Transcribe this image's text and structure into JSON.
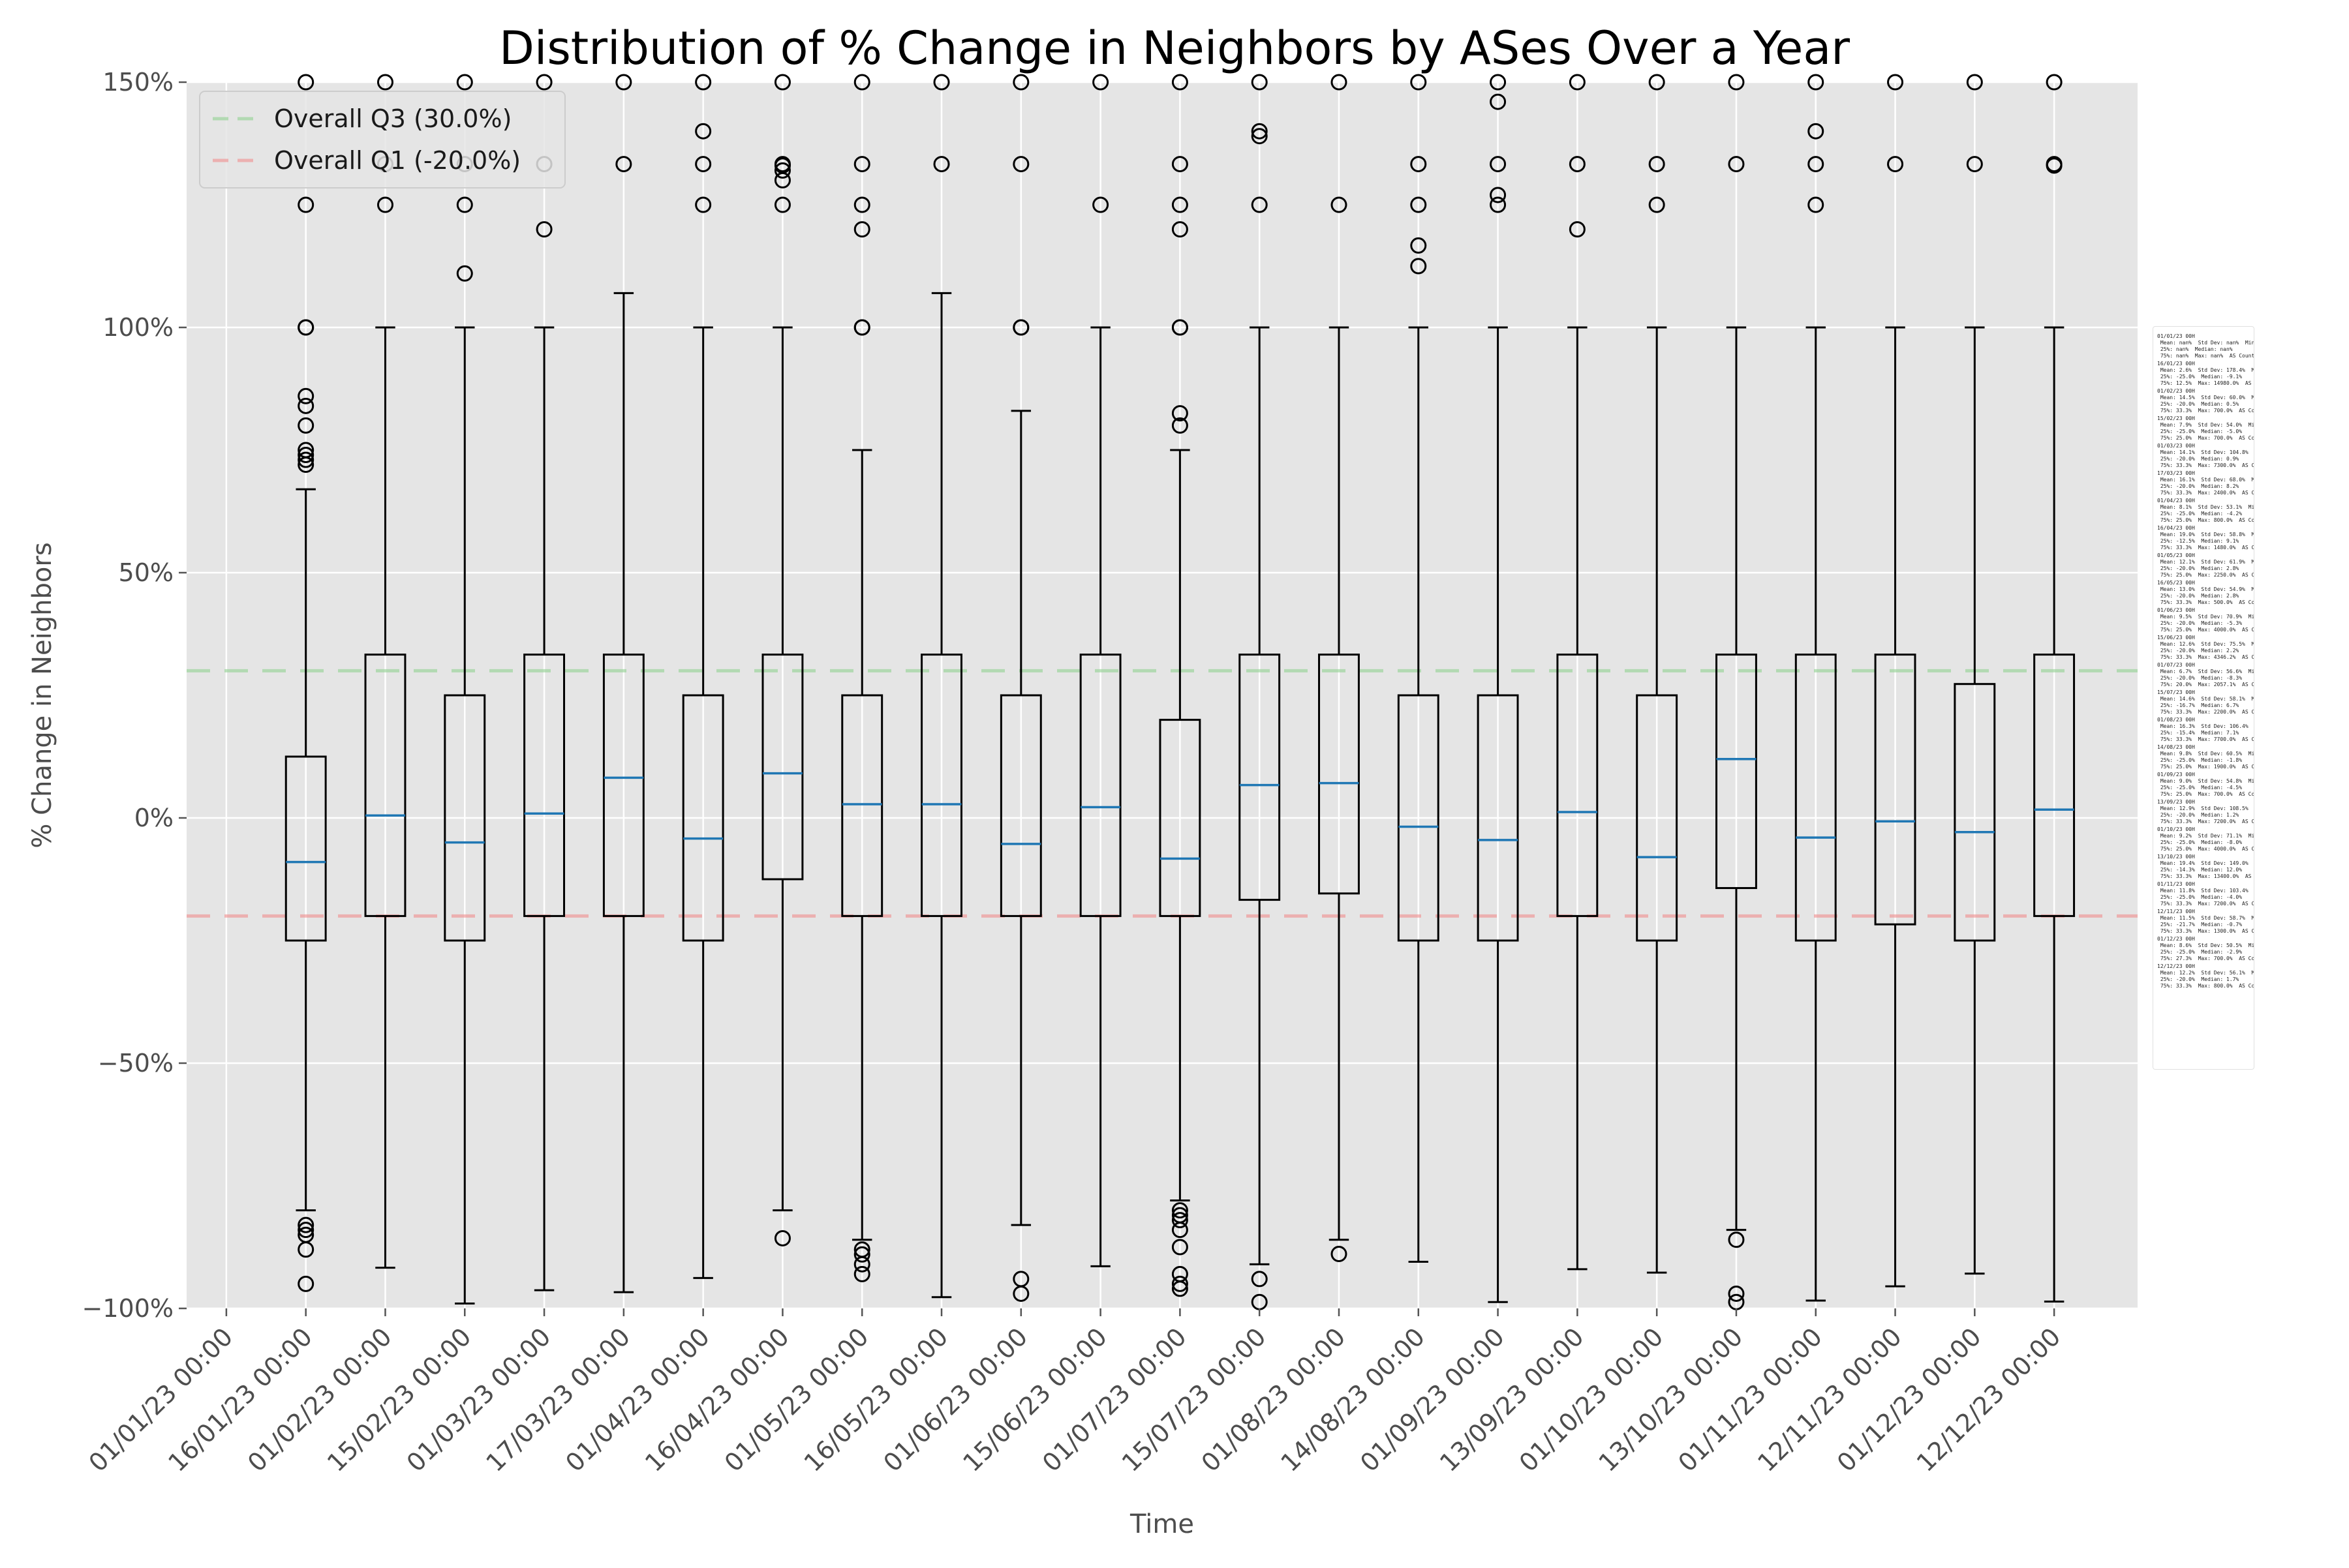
{
  "chart_data": {
    "type": "box",
    "title": "Distribution of % Change in Neighbors by ASes Over a Year",
    "xlabel": "Time",
    "ylabel": "% Change in Neighbors",
    "ylim": [
      -100,
      150
    ],
    "yticks": [
      -100,
      -50,
      0,
      50,
      100,
      150
    ],
    "ytick_labels": [
      "−100%",
      "−50%",
      "0%",
      "50%",
      "100%",
      "150%"
    ],
    "grid": true,
    "legend_position": "top-left",
    "reference_lines": [
      {
        "name": "Overall Q3 (30.0%)",
        "value": 30,
        "color": "#8fd18f"
      },
      {
        "name": "Overall Q1 (-20.0%)",
        "value": -20,
        "color": "#f08c8c"
      }
    ],
    "categories": [
      "01/01/23 00:00",
      "16/01/23 00:00",
      "01/02/23 00:00",
      "15/02/23 00:00",
      "01/03/23 00:00",
      "17/03/23 00:00",
      "01/04/23 00:00",
      "16/04/23 00:00",
      "01/05/23 00:00",
      "16/05/23 00:00",
      "01/06/23 00:00",
      "15/06/23 00:00",
      "01/07/23 00:00",
      "15/07/23 00:00",
      "01/08/23 00:00",
      "14/08/23 00:00",
      "01/09/23 00:00",
      "13/09/23 00:00",
      "01/10/23 00:00",
      "13/10/23 00:00",
      "01/11/23 00:00",
      "12/11/23 00:00",
      "01/12/23 00:00",
      "12/12/23 00:00"
    ],
    "boxes": [
      null,
      {
        "q1": -25,
        "median": -9,
        "q3": 12.5,
        "whisker_low": -80,
        "whisker_high": 67,
        "outliers": [
          150,
          125,
          100,
          100,
          86,
          84,
          80,
          75,
          74,
          73,
          72,
          -83,
          -84,
          -85,
          -88,
          -95
        ]
      },
      {
        "q1": -20,
        "median": 0.5,
        "q3": 33.3,
        "whisker_low": -91.7,
        "whisker_high": 100,
        "outliers": [
          150,
          133.3,
          125
        ]
      },
      {
        "q1": -25,
        "median": -5,
        "q3": 25,
        "whisker_low": -99,
        "whisker_high": 100,
        "outliers": [
          150,
          133.3,
          125,
          111
        ]
      },
      {
        "q1": -20,
        "median": 0.9,
        "q3": 33.3,
        "whisker_low": -96.3,
        "whisker_high": 100,
        "outliers": [
          150,
          133.3,
          120
        ]
      },
      {
        "q1": -20,
        "median": 8.2,
        "q3": 33.3,
        "whisker_low": -96.7,
        "whisker_high": 107,
        "outliers": [
          150,
          133.3
        ]
      },
      {
        "q1": -25,
        "median": -4.2,
        "q3": 25,
        "whisker_low": -93.8,
        "whisker_high": 100,
        "outliers": [
          150,
          140,
          133.3,
          125
        ]
      },
      {
        "q1": -12.5,
        "median": 9.1,
        "q3": 33.3,
        "whisker_low": -80,
        "whisker_high": 100,
        "outliers": [
          150,
          133.3,
          133,
          132,
          130,
          125,
          -85.7
        ]
      },
      {
        "q1": -20,
        "median": 2.8,
        "q3": 25,
        "whisker_low": -86,
        "whisker_high": 75,
        "outliers": [
          150,
          133.3,
          125,
          120,
          100,
          100,
          -88,
          -89,
          -91,
          -93
        ]
      },
      {
        "q1": -20,
        "median": 2.8,
        "q3": 33.3,
        "whisker_low": -97.7,
        "whisker_high": 107,
        "outliers": [
          150,
          133.3
        ]
      },
      {
        "q1": -20,
        "median": -5.3,
        "q3": 25,
        "whisker_low": -83,
        "whisker_high": 83,
        "outliers": [
          150,
          133.3,
          100,
          100,
          -94,
          -97
        ]
      },
      {
        "q1": -20,
        "median": 2.2,
        "q3": 33.3,
        "whisker_low": -91.4,
        "whisker_high": 100,
        "outliers": [
          150,
          125
        ]
      },
      {
        "q1": -20,
        "median": -8.3,
        "q3": 20,
        "whisker_low": -78,
        "whisker_high": 75,
        "outliers": [
          150,
          133.3,
          125,
          120,
          100,
          100,
          82.5,
          80,
          -80,
          -81,
          -82,
          -84,
          -87.5,
          -93,
          -95,
          -96
        ]
      },
      {
        "q1": -16.7,
        "median": 6.7,
        "q3": 33.3,
        "whisker_low": -91,
        "whisker_high": 100,
        "outliers": [
          150,
          140,
          139,
          125,
          -94,
          -98.7
        ]
      },
      {
        "q1": -15.4,
        "median": 7.1,
        "q3": 33.3,
        "whisker_low": -86,
        "whisker_high": 100,
        "outliers": [
          150,
          125,
          -88.9
        ]
      },
      {
        "q1": -25,
        "median": -1.8,
        "q3": 25,
        "whisker_low": -90.5,
        "whisker_high": 100,
        "outliers": [
          150,
          133.3,
          125,
          116.7,
          112.5
        ]
      },
      {
        "q1": -25,
        "median": -4.5,
        "q3": 25,
        "whisker_low": -98.7,
        "whisker_high": 100,
        "outliers": [
          150,
          146,
          133.3,
          127,
          125
        ]
      },
      {
        "q1": -20,
        "median": 1.2,
        "q3": 33.3,
        "whisker_low": -92,
        "whisker_high": 100,
        "outliers": [
          150,
          133.3,
          120
        ]
      },
      {
        "q1": -25,
        "median": -8,
        "q3": 25,
        "whisker_low": -92.7,
        "whisker_high": 100,
        "outliers": [
          150,
          133.3,
          125
        ]
      },
      {
        "q1": -14.3,
        "median": 12,
        "q3": 33.3,
        "whisker_low": -84,
        "whisker_high": 100,
        "outliers": [
          150,
          133.3,
          -86,
          -97,
          -98.7
        ]
      },
      {
        "q1": -25,
        "median": -4,
        "q3": 33.3,
        "whisker_low": -98.4,
        "whisker_high": 100,
        "outliers": [
          150,
          140,
          133.3,
          125
        ]
      },
      {
        "q1": -21.7,
        "median": -0.7,
        "q3": 33.3,
        "whisker_low": -95.5,
        "whisker_high": 100,
        "outliers": [
          150,
          133.3
        ]
      },
      {
        "q1": -25,
        "median": -2.9,
        "q3": 27.3,
        "whisker_low": -92.9,
        "whisker_high": 100,
        "outliers": [
          150,
          133.3
        ]
      },
      {
        "q1": -20,
        "median": 1.7,
        "q3": 33.3,
        "whisker_low": -98.6,
        "whisker_high": 100,
        "outliers": [
          150,
          133.3,
          133
        ]
      }
    ],
    "summary_stats": [
      {
        "date": "01/01/23 00H",
        "mean": "nan%",
        "std": "nan%",
        "min": "nan%",
        "p25": "nan%",
        "median": "nan%",
        "p75": "nan%",
        "max": "nan%",
        "count": "0"
      },
      {
        "date": "16/01/23 00H",
        "mean": "2.6%",
        "std": "178.4%",
        "min": "-95.8%",
        "p25": "-25.0%",
        "median": "-9.1%",
        "p75": "12.5%",
        "max": "14980.0%",
        "count": "7641"
      },
      {
        "date": "01/02/23 00H",
        "mean": "14.5%",
        "std": "60.0%",
        "min": "-91.7%",
        "p25": "-20.0%",
        "median": "0.5%",
        "p75": "33.3%",
        "max": "700.0%",
        "count": "7281"
      },
      {
        "date": "15/02/23 00H",
        "mean": "7.9%",
        "std": "54.0%",
        "min": "-99.0%",
        "p25": "-25.0%",
        "median": "-5.0%",
        "p75": "25.0%",
        "max": "700.0%",
        "count": "7253"
      },
      {
        "date": "01/03/23 00H",
        "mean": "14.1%",
        "std": "104.8%",
        "min": "-96.3%",
        "p25": "-20.0%",
        "median": "0.9%",
        "p75": "33.3%",
        "max": "7300.0%",
        "count": "6938"
      },
      {
        "date": "17/03/23 00H",
        "mean": "16.1%",
        "std": "68.0%",
        "min": "-96.7%",
        "p25": "-20.0%",
        "median": "8.2%",
        "p75": "33.3%",
        "max": "2400.0%",
        "count": "8146"
      },
      {
        "date": "01/04/23 00H",
        "mean": "8.1%",
        "std": "53.1%",
        "min": "-93.8%",
        "p25": "-25.0%",
        "median": "-4.2%",
        "p75": "25.0%",
        "max": "800.0%",
        "count": "8558"
      },
      {
        "date": "16/04/23 00H",
        "mean": "19.0%",
        "std": "58.8%",
        "min": "-85.7%",
        "p25": "-12.5%",
        "median": "9.1%",
        "p75": "33.3%",
        "max": "1480.0%",
        "count": "6860"
      },
      {
        "date": "01/05/23 00H",
        "mean": "12.1%",
        "std": "61.9%",
        "min": "-93.3%",
        "p25": "-20.0%",
        "median": "2.8%",
        "p75": "25.0%",
        "max": "2250.0%",
        "count": "7484"
      },
      {
        "date": "16/05/23 00H",
        "mean": "13.0%",
        "std": "54.9%",
        "min": "-97.7%",
        "p25": "-20.0%",
        "median": "2.8%",
        "p75": "33.3%",
        "max": "500.0%",
        "count": "6712"
      },
      {
        "date": "01/06/23 00H",
        "mean": "9.5%",
        "std": "70.9%",
        "min": "-97.2%",
        "p25": "-20.0%",
        "median": "-5.3%",
        "p75": "25.0%",
        "max": "4000.0%",
        "count": "8076"
      },
      {
        "date": "15/06/23 00H",
        "mean": "12.6%",
        "std": "75.5%",
        "min": "-91.4%",
        "p25": "-20.0%",
        "median": "2.2%",
        "p75": "33.3%",
        "max": "4346.2%",
        "count": "7069"
      },
      {
        "date": "01/07/23 00H",
        "mean": "6.7%",
        "std": "56.6%",
        "min": "-96.3%",
        "p25": "-20.0%",
        "median": "-8.3%",
        "p75": "20.0%",
        "max": "2057.1%",
        "count": "9276"
      },
      {
        "date": "15/07/23 00H",
        "mean": "14.6%",
        "std": "58.1%",
        "min": "-98.7%",
        "p25": "-16.7%",
        "median": "6.7%",
        "p75": "33.3%",
        "max": "2200.0%",
        "count": "6904"
      },
      {
        "date": "01/08/23 00H",
        "mean": "16.3%",
        "std": "106.4%",
        "min": "-88.9%",
        "p25": "-15.4%",
        "median": "7.1%",
        "p75": "33.3%",
        "max": "7700.0%",
        "count": "7495"
      },
      {
        "date": "14/08/23 00H",
        "mean": "9.8%",
        "std": "60.5%",
        "min": "-90.5%",
        "p25": "-25.0%",
        "median": "-1.8%",
        "p75": "25.0%",
        "max": "1900.0%",
        "count": "6373"
      },
      {
        "date": "01/09/23 00H",
        "mean": "9.0%",
        "std": "54.8%",
        "min": "-98.7%",
        "p25": "-25.0%",
        "median": "-4.5%",
        "p75": "25.0%",
        "max": "700.0%",
        "count": "8285"
      },
      {
        "date": "13/09/23 00H",
        "mean": "12.9%",
        "std": "108.5%",
        "min": "-92.0%",
        "p25": "-20.0%",
        "median": "1.2%",
        "p75": "33.3%",
        "max": "7200.0%",
        "count": "5848"
      },
      {
        "date": "01/10/23 00H",
        "mean": "9.2%",
        "std": "71.1%",
        "min": "-92.7%",
        "p25": "-25.0%",
        "median": "-8.0%",
        "p75": "25.0%",
        "max": "4000.0%",
        "count": "10116"
      },
      {
        "date": "13/10/23 00H",
        "mean": "19.4%",
        "std": "149.0%",
        "min": "-98.7%",
        "p25": "-14.3%",
        "median": "12.0%",
        "p75": "33.3%",
        "max": "13400.0%",
        "count": "9334"
      },
      {
        "date": "01/11/23 00H",
        "mean": "11.8%",
        "std": "103.4%",
        "min": "-98.4%",
        "p25": "-25.0%",
        "median": "-4.0%",
        "p75": "33.3%",
        "max": "7200.0%",
        "count": "8927"
      },
      {
        "date": "12/11/23 00H",
        "mean": "11.5%",
        "std": "58.7%",
        "min": "-95.5%",
        "p25": "-21.7%",
        "median": "-0.7%",
        "p75": "33.3%",
        "max": "1300.0%",
        "count": "6588"
      },
      {
        "date": "01/12/23 00H",
        "mean": "8.6%",
        "std": "50.5%",
        "min": "-92.9%",
        "p25": "-25.0%",
        "median": "-2.9%",
        "p75": "27.3%",
        "max": "700.0%",
        "count": "6828"
      },
      {
        "date": "12/12/23 00H",
        "mean": "12.2%",
        "std": "56.1%",
        "min": "-98.6%",
        "p25": "-20.0%",
        "median": "1.7%",
        "p75": "33.3%",
        "max": "800.0%",
        "count": "5997"
      }
    ],
    "colors": {
      "plot_background": "#e5e5e5",
      "grid": "#ffffff",
      "box": "#000000",
      "median": "#1f77b4",
      "q3_line": "#8fd18f",
      "q1_line": "#f08c8c"
    }
  }
}
